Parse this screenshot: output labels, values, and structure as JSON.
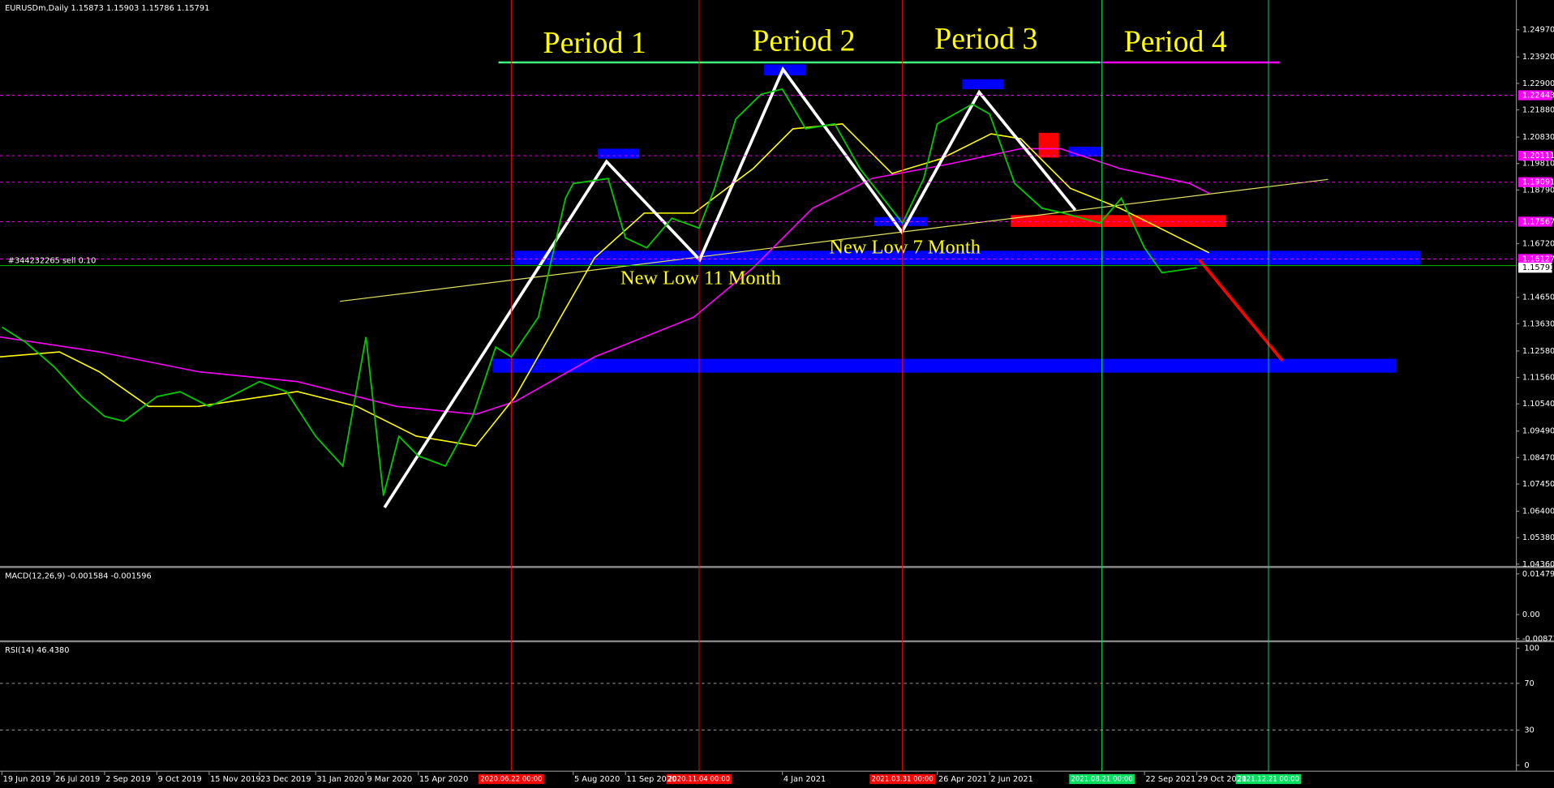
{
  "chart_data": [
    {
      "type": "line",
      "title": "EURUSDm,Daily  1.15873 1.15903 1.15786 1.15791",
      "color": "#00c800",
      "x": [
        "2019-06-19",
        "2019-07-05",
        "2019-07-26",
        "2019-08-15",
        "2019-09-02",
        "2019-09-16",
        "2019-10-09",
        "2019-10-25",
        "2019-11-15",
        "2019-12-02",
        "2019-12-23",
        "2020-01-10",
        "2020-01-31",
        "2020-02-20",
        "2020-03-09",
        "2020-03-20",
        "2020-04-01",
        "2020-04-15",
        "2020-05-05",
        "2020-05-25",
        "2020-06-10",
        "2020-06-22",
        "2020-07-10",
        "2020-07-30",
        "2020-08-05",
        "2020-08-31",
        "2020-09-11",
        "2020-09-28",
        "2020-10-15",
        "2020-11-04",
        "2020-11-16",
        "2020-12-01",
        "2020-12-18",
        "2021-01-04",
        "2021-01-20",
        "2021-02-10",
        "2021-03-01",
        "2021-03-31",
        "2021-04-15",
        "2021-04-26",
        "2021-05-20",
        "2021-06-02",
        "2021-06-21",
        "2021-07-09",
        "2021-07-26",
        "2021-08-20",
        "2021-09-06",
        "2021-09-22",
        "2021-10-05",
        "2021-10-29"
      ],
      "values": [
        1.135,
        1.1293,
        1.1197,
        1.1082,
        1.1006,
        1.0987,
        1.1082,
        1.1101,
        1.1044,
        1.1082,
        1.114,
        1.1101,
        1.0929,
        1.0814,
        1.1312,
        1.07,
        1.0929,
        1.0853,
        1.0814,
        1.1006,
        1.1273,
        1.1235,
        1.1388,
        1.1847,
        1.1904,
        1.1923,
        1.1694,
        1.1656,
        1.177,
        1.1732,
        1.1885,
        1.2153,
        1.2248,
        1.2268,
        1.2115,
        1.2134,
        1.1962,
        1.1751,
        1.1923,
        1.2134,
        1.221,
        1.2172,
        1.1904,
        1.1809,
        1.179,
        1.1751,
        1.1847,
        1.1656,
        1.156,
        1.15791
      ],
      "xlim": [
        "2019-06-18",
        "2022-06-17"
      ],
      "xticks": [
        {
          "value": "2019-06-19",
          "label": "19 Jun 2019"
        },
        {
          "value": "2019-07-26",
          "label": "26 Jul 2019"
        },
        {
          "value": "2019-09-02",
          "label": "2 Sep 2019"
        },
        {
          "value": "2019-10-09",
          "label": "9 Oct 2019"
        },
        {
          "value": "2019-11-15",
          "label": "15 Nov 2019"
        },
        {
          "value": "2019-12-23",
          "label": "23 Dec 2019"
        },
        {
          "value": "2020-01-31",
          "label": "31 Jan 2020"
        },
        {
          "value": "2020-03-09",
          "label": "9 Mar 2020"
        },
        {
          "value": "2020-04-15",
          "label": "15 Apr 2020"
        },
        {
          "value": "2020-08-05",
          "label": "5 Aug 2020"
        },
        {
          "value": "2020-09-11",
          "label": "11 Sep 2020"
        },
        {
          "value": "2021-01-04",
          "label": "4 Jan 2021"
        },
        {
          "value": "2021-04-26",
          "label": "26 Apr 2021"
        },
        {
          "value": "2021-06-02",
          "label": "2 Jun 2021"
        },
        {
          "value": "2021-09-22",
          "label": "22 Sep 2021"
        },
        {
          "value": "2021-10-29",
          "label": "29 Oct 2021"
        }
      ],
      "vlines": [
        {
          "value": "2020-06-22",
          "label": "2020.06.22 00:00",
          "color": "#ff0000"
        },
        {
          "value": "2020-11-04",
          "label": "2020.11.04 00:00",
          "color": "#ff0000"
        },
        {
          "value": "2021-03-31",
          "label": "2021.03.31 00:00",
          "color": "#ff0000"
        },
        {
          "value": "2021-08-21",
          "label": "2021.08.21 00:00",
          "color": "#00e060"
        },
        {
          "value": "2021-12-21",
          "label": "2021.12.21 00:00",
          "color": "#00e060"
        }
      ],
      "ylim": [
        1.0425,
        1.2604
      ],
      "yticks": [
        {
          "value": 1.2497,
          "label": "1.24970"
        },
        {
          "value": 1.2392,
          "label": "1.23920"
        },
        {
          "value": 1.229,
          "label": "1.22900"
        },
        {
          "value": 1.2188,
          "label": "1.21880"
        },
        {
          "value": 1.2083,
          "label": "1.20830"
        },
        {
          "value": 1.1981,
          "label": "1.19810"
        },
        {
          "value": 1.1879,
          "label": "1.18790"
        },
        {
          "value": 1.1672,
          "label": "1.16720"
        },
        {
          "value": 1.1465,
          "label": "1.14650"
        },
        {
          "value": 1.1363,
          "label": "1.13630"
        },
        {
          "value": 1.1258,
          "label": "1.12580"
        },
        {
          "value": 1.1156,
          "label": "1.11560"
        },
        {
          "value": 1.1054,
          "label": "1.10540"
        },
        {
          "value": 1.0949,
          "label": "1.09490"
        },
        {
          "value": 1.0847,
          "label": "1.08470"
        },
        {
          "value": 1.0745,
          "label": "1.07450"
        },
        {
          "value": 1.064,
          "label": "1.06400"
        },
        {
          "value": 1.0538,
          "label": "1.05380"
        },
        {
          "value": 1.0436,
          "label": "1.04360"
        }
      ],
      "levels": [
        {
          "value": 1.22443,
          "color": "#ff00ff"
        },
        {
          "value": 1.20111,
          "color": "#ff00ff"
        },
        {
          "value": 1.19091,
          "color": "#ff00ff"
        },
        {
          "value": 1.17567,
          "color": "#ff00ff"
        },
        {
          "value": 1.16127,
          "color": "#ff00ff"
        },
        {
          "value": 1.15791,
          "color": "#ffffff"
        }
      ],
      "order": {
        "label": "#344232265 sell 0.10",
        "price": 1.15873
      },
      "periods": [
        "Period 1",
        "Period 2",
        "Period 3",
        "Period 4"
      ],
      "annotations": [
        "New Low 11 Month",
        "New Low 7 Month"
      ]
    },
    {
      "type": "macd",
      "title": "MACD(12,26,9) -0.001584 -0.001596",
      "ylim": [
        -0.00938,
        0.01623
      ],
      "yticks": [
        0.014792,
        {
          "value": 0,
          "label": "0.00"
        },
        -0.008775
      ]
    },
    {
      "type": "rsi",
      "title": "RSI(14) 46.4380",
      "ylim": [
        -5.1,
        105.1
      ],
      "yticks": [
        100,
        70,
        30,
        0
      ],
      "levels": [
        70,
        30
      ]
    }
  ]
}
